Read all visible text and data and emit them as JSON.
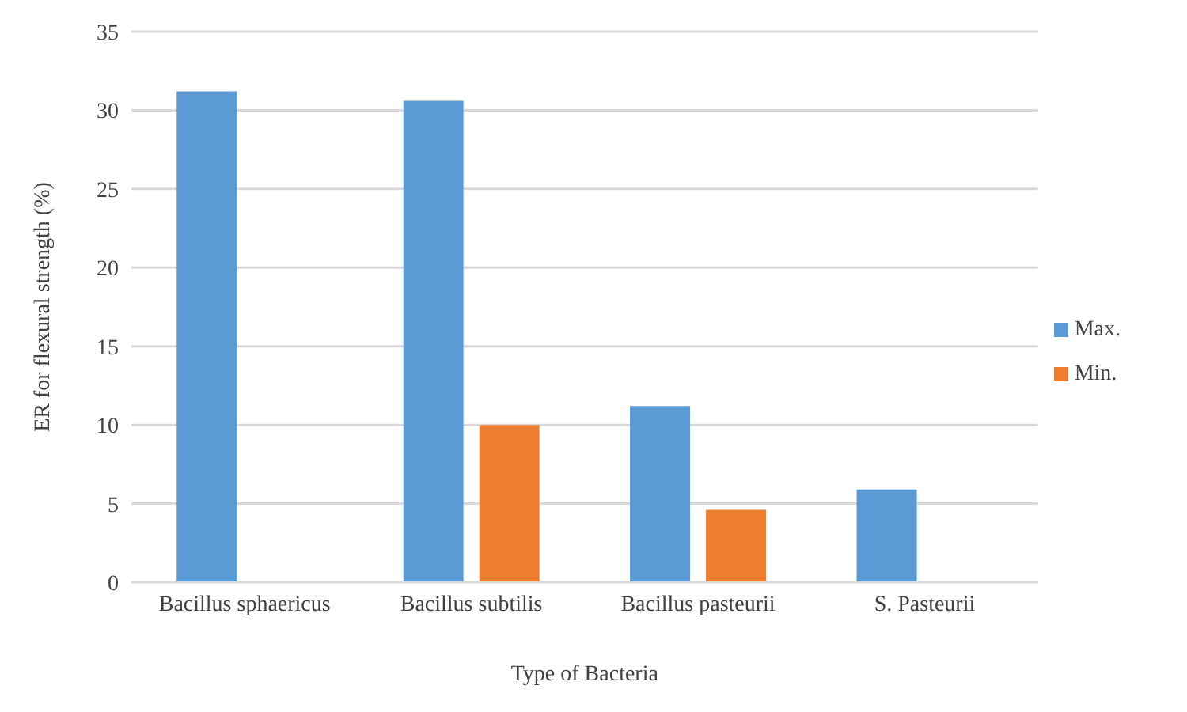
{
  "chart_data": {
    "type": "bar",
    "xlabel": "Type of Bacteria",
    "ylabel": "ER for flexural strength (%)",
    "categories": [
      "Bacillus sphaericus",
      "Bacillus subtilis",
      "Bacillus pasteurii",
      "S. Pasteurii"
    ],
    "series": [
      {
        "name": "Max.",
        "color": "#5b9bd5",
        "values": [
          31.2,
          30.6,
          11.2,
          5.9
        ]
      },
      {
        "name": "Min.",
        "color": "#ed7d31",
        "values": [
          null,
          10.0,
          4.6,
          null
        ]
      }
    ],
    "ylim": [
      0,
      35
    ],
    "yticks": [
      0,
      5,
      10,
      15,
      20,
      25,
      30,
      35
    ],
    "grid": "y",
    "legend": "right"
  }
}
